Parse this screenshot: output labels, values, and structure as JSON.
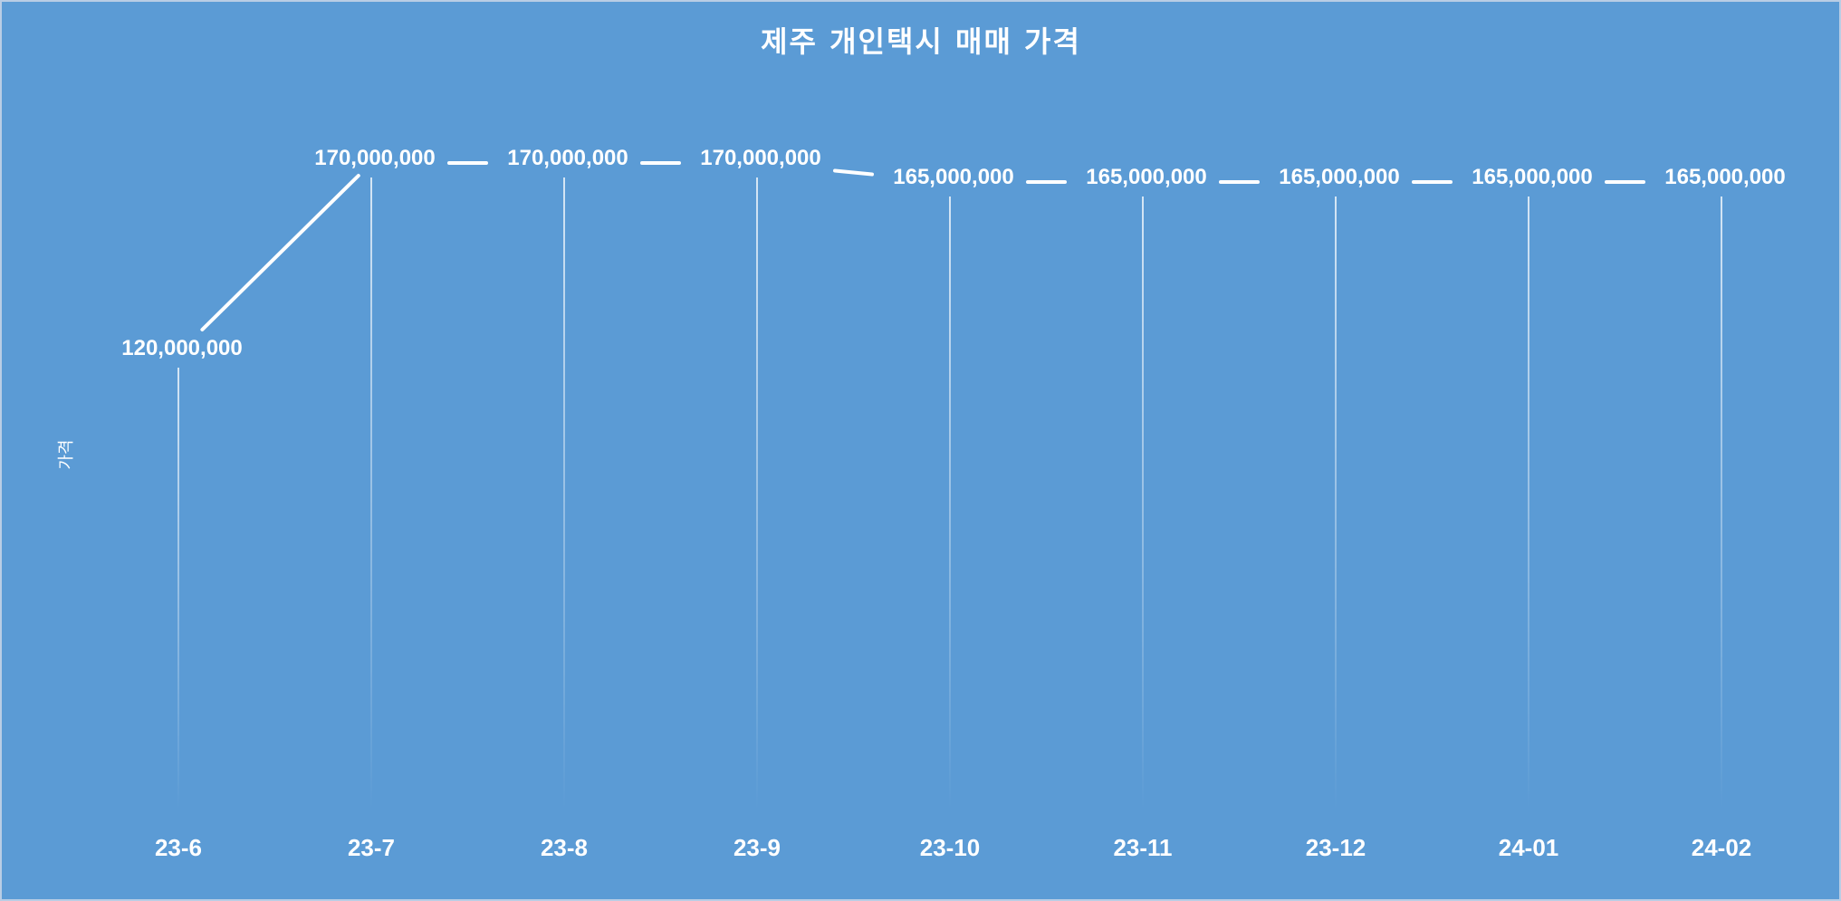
{
  "chart_data": {
    "type": "line",
    "title": "제주 개인택시 매매 가격",
    "ylabel": "가격",
    "xlabel": "",
    "categories": [
      "23-6",
      "23-7",
      "23-8",
      "23-9",
      "23-10",
      "23-11",
      "23-12",
      "24-01",
      "24-02"
    ],
    "series": [
      {
        "values": [
          120000000,
          170000000,
          170000000,
          170000000,
          165000000,
          165000000,
          165000000,
          165000000,
          165000000
        ]
      }
    ],
    "data_labels": [
      "120,000,000",
      "170,000,000",
      "170,000,000",
      "170,000,000",
      "165,000,000",
      "165,000,000",
      "165,000,000",
      "165,000,000",
      "165,000,000"
    ],
    "ylim": [
      0,
      200000000
    ],
    "grid": false,
    "drop_lines": true,
    "legend": "none"
  },
  "colors": {
    "background": "#5b9bd5",
    "border": "#b9cde5",
    "line": "#ffffff",
    "text": "#ffffff"
  }
}
